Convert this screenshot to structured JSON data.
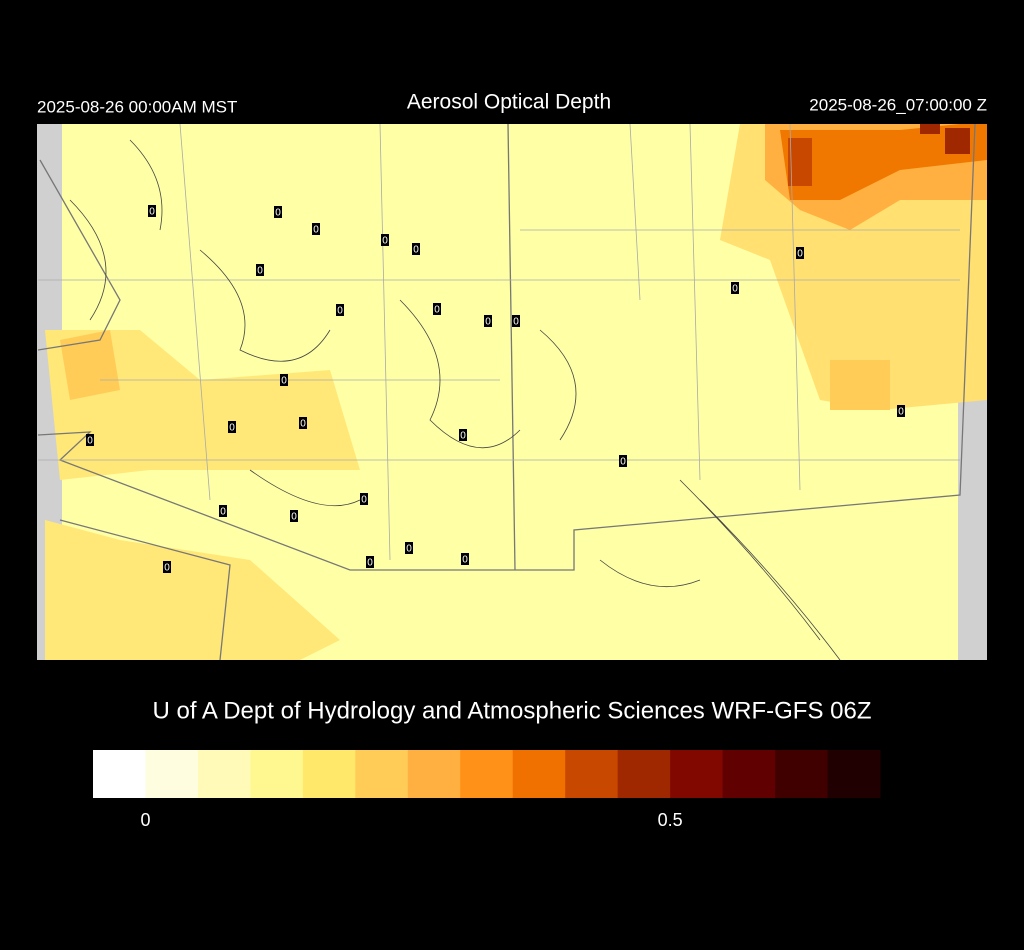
{
  "header": {
    "left": "2025-08-26 00:00AM MST",
    "title": "Aerosol Optical Depth",
    "right": "2025-08-26_07:00:00 Z"
  },
  "credit": "U of A Dept of Hydrology and Atmospheric Sciences WRF-GFS 06Z",
  "colorbar": {
    "range": [
      -0.05,
      0.7
    ],
    "ticks": [
      0,
      0.5
    ],
    "colors": [
      "#ffffff",
      "#fffde0",
      "#fffab8",
      "#fff890",
      "#ffe86a",
      "#ffcc58",
      "#ffb040",
      "#ff9018",
      "#f07000",
      "#c84800",
      "#a02800",
      "#800800",
      "#600000",
      "#400000",
      "#200000"
    ]
  },
  "station_labels": [
    "0",
    "0",
    "0",
    "0",
    "0",
    "0",
    "0",
    "0",
    "0",
    "0",
    "0",
    "0",
    "0",
    "0",
    "0",
    "0",
    "0",
    "0",
    "0",
    "0",
    "0",
    "0",
    "0",
    "0",
    "0",
    "0"
  ]
}
